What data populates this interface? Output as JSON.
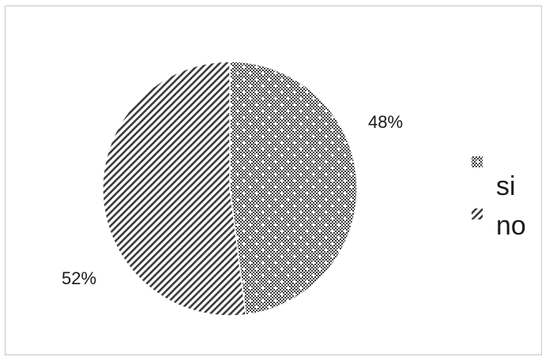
{
  "chart_data": {
    "type": "pie",
    "title": "",
    "legend_position": "right",
    "slices": [
      {
        "label": "si",
        "value": 48,
        "display": "48%",
        "pattern": "dotted-grid"
      },
      {
        "label": "no",
        "value": 52,
        "display": "52%",
        "pattern": "diagonal-stripes"
      }
    ],
    "start_angle_deg": 0,
    "direction": "clockwise",
    "colors": {
      "ink": "#1a1a1a",
      "pattern_dark": "#3a3a3a",
      "pattern_light": "#ffffff",
      "frame": "#c6c6c6"
    }
  }
}
